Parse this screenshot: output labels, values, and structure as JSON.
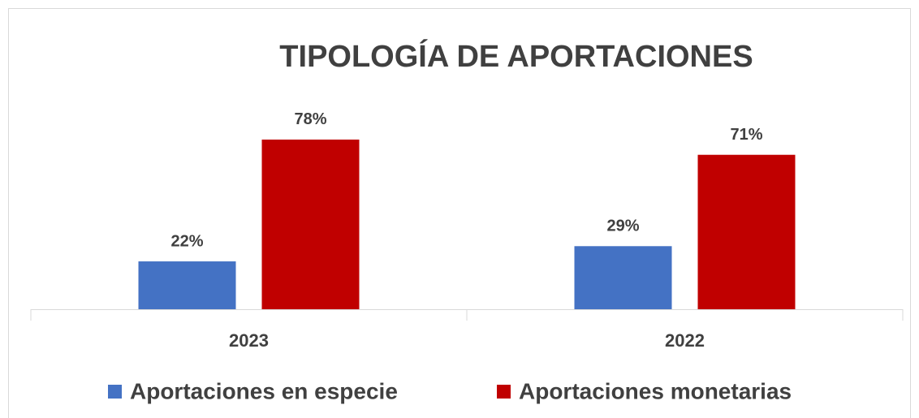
{
  "chart_data": {
    "type": "bar",
    "title": "TIPOLOGÍA DE APORTACIONES",
    "categories": [
      "2023",
      "2022"
    ],
    "series": [
      {
        "name": "Aportaciones en especie",
        "color": "#4472c4",
        "values": [
          22,
          29
        ],
        "value_labels": [
          "22%",
          "29%"
        ]
      },
      {
        "name": "Aportaciones monetarias",
        "color": "#c00000",
        "values": [
          78,
          71
        ],
        "value_labels": [
          "78%",
          "71%"
        ]
      }
    ],
    "ylim": [
      0,
      100
    ],
    "legend": "bottom"
  }
}
